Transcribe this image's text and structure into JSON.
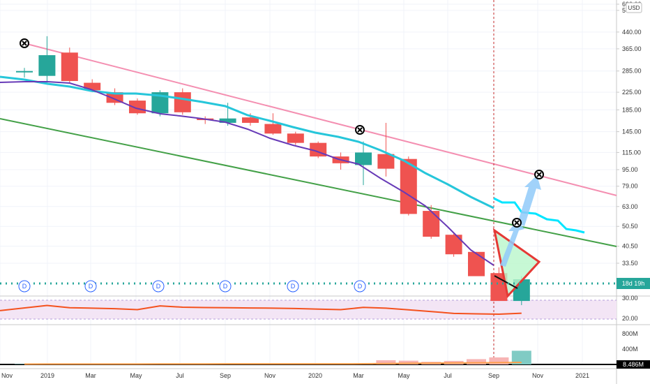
{
  "chart_data": {
    "type": "candlestick",
    "currency_badge": "USD",
    "price_axis_scale": "log",
    "price_range": [
      20,
      700
    ],
    "price_tick_labels": [
      "600.00",
      "560.00",
      "440.00",
      "365.00",
      "285.00",
      "225.00",
      "185.00",
      "145.00",
      "115.00",
      "95.00",
      "79.00",
      "63.00",
      "50.50",
      "40.50",
      "33.50"
    ],
    "time_labels": [
      "Nov",
      "2019",
      "Mar",
      "May",
      "Jul",
      "Sep",
      "Nov",
      "2020",
      "Mar",
      "May",
      "Jul",
      "Sep",
      "Nov",
      "2021"
    ],
    "candles": [
      {
        "o": 285,
        "h": 295,
        "l": 265,
        "c": 285
      },
      {
        "o": 270,
        "h": 420,
        "l": 250,
        "c": 340
      },
      {
        "o": 350,
        "h": 370,
        "l": 250,
        "c": 255
      },
      {
        "o": 250,
        "h": 260,
        "l": 225,
        "c": 230
      },
      {
        "o": 225,
        "h": 235,
        "l": 195,
        "c": 200
      },
      {
        "o": 205,
        "h": 210,
        "l": 175,
        "c": 178
      },
      {
        "o": 178,
        "h": 230,
        "l": 172,
        "c": 225
      },
      {
        "o": 225,
        "h": 235,
        "l": 175,
        "c": 180
      },
      {
        "o": 168,
        "h": 172,
        "l": 158,
        "c": 165
      },
      {
        "o": 160,
        "h": 200,
        "l": 155,
        "c": 168
      },
      {
        "o": 170,
        "h": 178,
        "l": 155,
        "c": 160
      },
      {
        "o": 158,
        "h": 178,
        "l": 140,
        "c": 142
      },
      {
        "o": 142,
        "h": 145,
        "l": 125,
        "c": 128
      },
      {
        "o": 128,
        "h": 130,
        "l": 108,
        "c": 110
      },
      {
        "o": 110,
        "h": 115,
        "l": 95,
        "c": 102
      },
      {
        "o": 100,
        "h": 130,
        "l": 80,
        "c": 115
      },
      {
        "o": 113,
        "h": 160,
        "l": 88,
        "c": 96
      },
      {
        "o": 107,
        "h": 110,
        "l": 57,
        "c": 58
      },
      {
        "o": 60,
        "h": 64,
        "l": 44,
        "c": 45
      },
      {
        "o": 46,
        "h": 47,
        "l": 36,
        "c": 37
      },
      {
        "o": 38,
        "h": 38,
        "l": 29,
        "c": 29
      },
      {
        "o": 30,
        "h": 32,
        "l": 22,
        "c": 22
      },
      {
        "o": 22,
        "h": 29,
        "l": 21,
        "c": 28
      }
    ],
    "dividend_markers": [
      "D",
      "D",
      "D",
      "D",
      "D",
      "D"
    ],
    "countdown_label": "18d 19h",
    "oscillator_tick_labels": [
      "30.00",
      "20.00"
    ],
    "oscillator_values": [
      24.5,
      27.2,
      26.0,
      25.8,
      25.5,
      25.0,
      27.0,
      26.3,
      26.1,
      26.0,
      25.9,
      25.8,
      25.6,
      25.3,
      25.0,
      26.2,
      25.8,
      24.9,
      24.0,
      23.0,
      22.8,
      22.6,
      23.1
    ],
    "volume_tick_labels": [
      "800M",
      "400M"
    ],
    "volume_last_label": "8.486M",
    "volumes": [
      8,
      12,
      10,
      8,
      9,
      10,
      18,
      12,
      9,
      15,
      12,
      10,
      11,
      10,
      14,
      30,
      95,
      85,
      60,
      80,
      120,
      160,
      310
    ],
    "volume_ma": [
      8,
      9,
      9,
      9,
      10,
      10,
      12,
      12,
      12,
      13,
      13,
      13,
      13,
      13,
      14,
      15,
      20,
      25,
      30,
      34,
      38,
      42,
      46
    ],
    "colors": {
      "up": "#26a69a",
      "down": "#ef5350",
      "ma_fast": "#673ab7",
      "ma_slow": "#26c6da",
      "trend_upper": "#f48fb1",
      "trend_lower": "#43a047",
      "forecast_outline": "#e53935",
      "forecast_fill": "#b9f6ca",
      "arrow": "#90caf9",
      "oscillator": "#f4511e",
      "osc_band": "#f3e5f5",
      "volume_up": "#80cbc4",
      "volume_down": "#f7b4b4",
      "volume_ma": "#ff9e4a",
      "dividend": "#2962ff",
      "horizontal_dotted": "#26a69a",
      "countdown_bg": "#26a69a",
      "axis_text": "#333333"
    },
    "grid": true
  }
}
